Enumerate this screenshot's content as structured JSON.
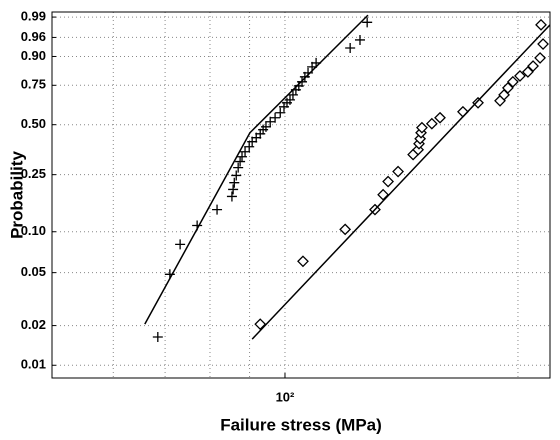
{
  "chart_data": {
    "type": "scatter",
    "xlabel": "Failure stress (MPa)",
    "ylabel": "Probability",
    "xscale": "log",
    "yscale": "weibull",
    "xlim": [
      50,
      220
    ],
    "ylim": [
      0.008,
      0.9935
    ],
    "xticks": [
      {
        "value": 100,
        "label": "10²"
      }
    ],
    "xgrid": [
      60,
      70,
      80,
      90,
      100,
      200
    ],
    "yticks": [
      0.01,
      0.02,
      0.05,
      {
        "value": 0.1,
        "label": "0.10"
      },
      0.25,
      {
        "value": 0.5,
        "label": "0.50"
      },
      0.75,
      {
        "value": 0.9,
        "label": "0.90"
      },
      0.96,
      0.99
    ],
    "grid": true,
    "color": "#000000",
    "series": [
      {
        "kind": "scatter",
        "marker": "plus",
        "x": [
          68.5,
          71.0,
          73.2,
          77.0,
          81.7,
          85.4,
          85.7,
          86.0,
          86.5,
          87.0,
          87.5,
          88.0,
          88.8,
          89.9,
          90.7,
          91.8,
          92.9,
          93.7,
          94.5,
          95.7,
          97.1,
          98.6,
          99.7,
          100.6,
          101.5,
          102.4,
          103.3,
          104.2,
          105.2,
          106.1,
          107.1,
          108.4,
          109.7,
          121.4,
          125.0,
          127.7
        ],
        "values": [
          0.0164,
          0.0486,
          0.0809,
          0.111,
          0.144,
          0.178,
          0.199,
          0.221,
          0.247,
          0.278,
          0.304,
          0.326,
          0.35,
          0.375,
          0.402,
          0.424,
          0.446,
          0.47,
          0.487,
          0.518,
          0.543,
          0.575,
          0.613,
          0.639,
          0.658,
          0.69,
          0.722,
          0.746,
          0.771,
          0.8,
          0.822,
          0.853,
          0.872,
          0.931,
          0.954,
          0.985
        ]
      },
      {
        "kind": "scatter",
        "marker": "diamond",
        "x": [
          92.9,
          105.5,
          119.6,
          130.7,
          133.9,
          135.9,
          140.0,
          146.4,
          148.6,
          149.0,
          149.5,
          149.9,
          150.3,
          154.8,
          158.6,
          169.8,
          177.6,
          189.6,
          191.9,
          194.1,
          197.0,
          201.2,
          206.0,
          209.2,
          213.6,
          215.5,
          214.2
        ],
        "values": [
          0.0205,
          0.0607,
          0.104,
          0.144,
          0.183,
          0.225,
          0.262,
          0.336,
          0.36,
          0.391,
          0.418,
          0.452,
          0.482,
          0.506,
          0.543,
          0.581,
          0.639,
          0.652,
          0.69,
          0.734,
          0.771,
          0.805,
          0.827,
          0.857,
          0.894,
          0.943,
          0.982
        ]
      },
      {
        "kind": "line",
        "x": [
          65.9,
          90.1
        ],
        "values": [
          0.0205,
          0.452
        ]
      },
      {
        "kind": "line",
        "x": [
          90.1,
          128.0
        ],
        "values": [
          0.452,
          0.9915
        ]
      },
      {
        "kind": "line",
        "x": [
          90.7,
          220
        ],
        "values": [
          0.0158,
          0.982
        ]
      }
    ]
  }
}
